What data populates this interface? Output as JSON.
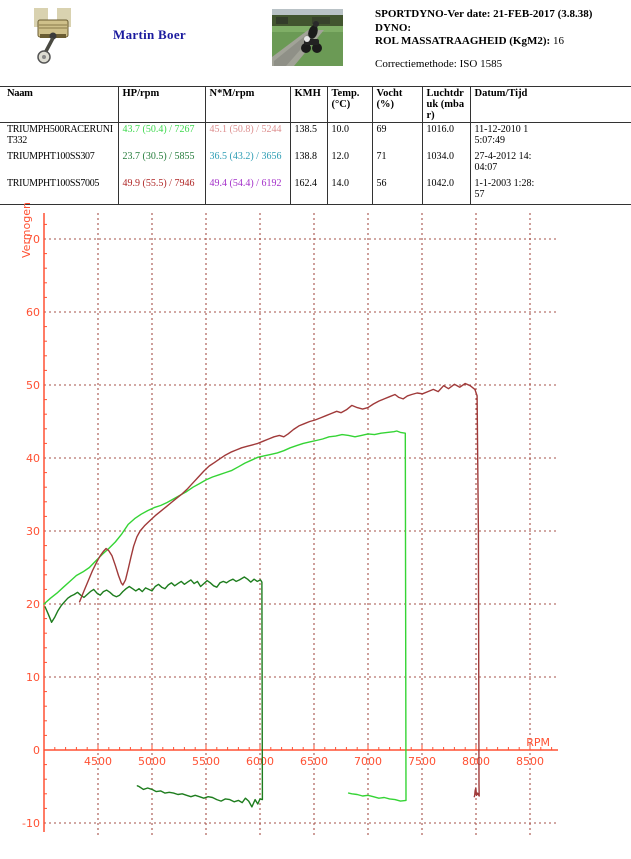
{
  "header": {
    "owner": "Martin Boer",
    "app_version": "SPORTDYNO-Ver date: 21-FEB-2017 (3.8.38)",
    "dyno_label": "DYNO:",
    "inertia_label": "ROL MASSATRAAGHEID (KgM2):",
    "inertia_value": "16",
    "correction": "Correctiemethode: ISO 1585",
    "logo_icon": "piston-logo",
    "photo_icon": "motorcycle-photo"
  },
  "table": {
    "columns": [
      "Naam",
      "HP/rpm",
      "N*M/rpm",
      "KMH",
      "Temp. (°C)",
      "Vocht (%)",
      "Luchtdruk (mbar)",
      "Datum/Tijd"
    ],
    "rows": [
      {
        "naam": "TRIUMPH500RACERUNIT332",
        "hp": "43.7 (50.4) / 7267",
        "hp_color": "#3fd94f",
        "nm": "45.1 (50.8) / 5244",
        "nm_color": "#dd8f8f",
        "kmh": "138.5",
        "temp": "10.0",
        "vocht": "69",
        "luchtdruk": "1016.0",
        "datum": "11-12-2010 15:07:49"
      },
      {
        "naam": "TRIUMPHT100SS307",
        "hp": "23.7 (30.5) / 5855",
        "hp_color": "#267d3c",
        "nm": "36.5 (43.2) / 3656",
        "nm_color": "#2d9db4",
        "kmh": "138.8",
        "temp": "12.0",
        "vocht": "71",
        "luchtdruk": "1034.0",
        "datum": "27-4-2012 14:04:07"
      },
      {
        "naam": "TRIUMPHT100SS7005",
        "hp": "49.9 (55.5) / 7946",
        "hp_color": "#b02828",
        "nm": "49.4 (54.4) / 6192",
        "nm_color": "#a431c9",
        "kmh": "162.4",
        "temp": "14.0",
        "vocht": "56",
        "luchtdruk": "1042.0",
        "datum": "1-1-2003 1:28:57"
      }
    ]
  },
  "chart_data": {
    "type": "line",
    "title": "",
    "xlabel": "RPM",
    "ylabel": "Vermogen",
    "xlim": [
      4000,
      8800
    ],
    "ylim": [
      -11,
      73
    ],
    "x_ticks": [
      4500,
      5000,
      5500,
      6000,
      6500,
      7000,
      7500,
      8000,
      8500
    ],
    "y_ticks": [
      -10,
      0,
      10,
      20,
      30,
      40,
      50,
      60,
      70
    ],
    "grid": "dashed",
    "legend": "none",
    "axis_color": "#ff5133",
    "grid_color": "#a65048",
    "series": [
      {
        "name": "TRIUMPH500RACERUNIT332 HP",
        "color": "#35d435",
        "peak": {
          "hp": 43.7,
          "rpm": 7267
        },
        "points": [
          [
            4000,
            20.0
          ],
          [
            4060,
            20.8
          ],
          [
            4120,
            21.5
          ],
          [
            4180,
            22.3
          ],
          [
            4240,
            23.1
          ],
          [
            4300,
            23.9
          ],
          [
            4360,
            24.4
          ],
          [
            4420,
            25.0
          ],
          [
            4480,
            25.9
          ],
          [
            4540,
            26.8
          ],
          [
            4600,
            27.6
          ],
          [
            4660,
            28.5
          ],
          [
            4720,
            29.6
          ],
          [
            4780,
            30.9
          ],
          [
            4840,
            31.7
          ],
          [
            4900,
            32.3
          ],
          [
            4960,
            32.8
          ],
          [
            5020,
            33.2
          ],
          [
            5080,
            33.5
          ],
          [
            5140,
            33.9
          ],
          [
            5200,
            34.4
          ],
          [
            5260,
            34.9
          ],
          [
            5320,
            35.4
          ],
          [
            5380,
            36.0
          ],
          [
            5440,
            36.5
          ],
          [
            5500,
            37.0
          ],
          [
            5560,
            37.4
          ],
          [
            5620,
            37.7
          ],
          [
            5680,
            38.0
          ],
          [
            5740,
            38.3
          ],
          [
            5800,
            38.8
          ],
          [
            5860,
            39.3
          ],
          [
            5920,
            39.7
          ],
          [
            5980,
            40.1
          ],
          [
            6040,
            40.3
          ],
          [
            6100,
            40.5
          ],
          [
            6160,
            40.7
          ],
          [
            6220,
            41.0
          ],
          [
            6280,
            41.4
          ],
          [
            6340,
            41.7
          ],
          [
            6400,
            42.0
          ],
          [
            6460,
            42.2
          ],
          [
            6520,
            42.4
          ],
          [
            6580,
            42.6
          ],
          [
            6640,
            42.9
          ],
          [
            6700,
            43.0
          ],
          [
            6760,
            43.2
          ],
          [
            6820,
            43.1
          ],
          [
            6880,
            42.9
          ],
          [
            6940,
            43.1
          ],
          [
            7000,
            43.3
          ],
          [
            7060,
            43.2
          ],
          [
            7120,
            43.4
          ],
          [
            7180,
            43.5
          ],
          [
            7240,
            43.6
          ],
          [
            7267,
            43.7
          ],
          [
            7300,
            43.5
          ],
          [
            7345,
            43.4
          ],
          [
            7352,
            -6.9
          ],
          [
            7300,
            -7.0
          ],
          [
            7250,
            -6.8
          ],
          [
            7200,
            -6.7
          ],
          [
            7150,
            -6.5
          ],
          [
            7100,
            -6.6
          ],
          [
            7050,
            -6.4
          ],
          [
            7000,
            -6.2
          ],
          [
            6950,
            -6.3
          ],
          [
            6900,
            -6.1
          ],
          [
            6850,
            -6.0
          ],
          [
            6820,
            -5.9
          ]
        ]
      },
      {
        "name": "TRIUMPHT100SS307 HP",
        "color": "#1e7d1e",
        "peak": {
          "hp": 23.7,
          "rpm": 5855
        },
        "points": [
          [
            4010,
            19.6
          ],
          [
            4040,
            18.6
          ],
          [
            4070,
            17.5
          ],
          [
            4100,
            18.2
          ],
          [
            4130,
            19.1
          ],
          [
            4160,
            19.8
          ],
          [
            4190,
            20.3
          ],
          [
            4220,
            20.8
          ],
          [
            4250,
            21.1
          ],
          [
            4280,
            21.3
          ],
          [
            4310,
            21.6
          ],
          [
            4340,
            21.2
          ],
          [
            4370,
            20.9
          ],
          [
            4400,
            21.3
          ],
          [
            4430,
            21.7
          ],
          [
            4460,
            22.0
          ],
          [
            4490,
            21.5
          ],
          [
            4520,
            21.2
          ],
          [
            4550,
            21.7
          ],
          [
            4580,
            21.9
          ],
          [
            4610,
            21.6
          ],
          [
            4640,
            21.2
          ],
          [
            4670,
            21.0
          ],
          [
            4700,
            21.2
          ],
          [
            4730,
            21.7
          ],
          [
            4760,
            22.1
          ],
          [
            4790,
            22.4
          ],
          [
            4820,
            22.1
          ],
          [
            4850,
            21.8
          ],
          [
            4880,
            22.1
          ],
          [
            4910,
            21.7
          ],
          [
            4940,
            22.2
          ],
          [
            4970,
            22.0
          ],
          [
            5000,
            21.8
          ],
          [
            5030,
            22.4
          ],
          [
            5060,
            22.7
          ],
          [
            5090,
            22.3
          ],
          [
            5120,
            22.1
          ],
          [
            5150,
            22.6
          ],
          [
            5180,
            22.9
          ],
          [
            5210,
            22.5
          ],
          [
            5240,
            22.8
          ],
          [
            5270,
            23.1
          ],
          [
            5300,
            22.7
          ],
          [
            5330,
            23.0
          ],
          [
            5360,
            23.3
          ],
          [
            5390,
            22.8
          ],
          [
            5420,
            23.1
          ],
          [
            5450,
            22.4
          ],
          [
            5480,
            22.8
          ],
          [
            5510,
            23.2
          ],
          [
            5540,
            22.9
          ],
          [
            5570,
            22.5
          ],
          [
            5600,
            22.3
          ],
          [
            5630,
            22.9
          ],
          [
            5660,
            23.1
          ],
          [
            5690,
            22.9
          ],
          [
            5720,
            23.2
          ],
          [
            5750,
            23.4
          ],
          [
            5780,
            23.1
          ],
          [
            5810,
            23.3
          ],
          [
            5855,
            23.7
          ],
          [
            5885,
            23.4
          ],
          [
            5915,
            23.0
          ],
          [
            5945,
            23.4
          ],
          [
            5975,
            23.1
          ],
          [
            6005,
            23.3
          ],
          [
            6018,
            23.0
          ],
          [
            6022,
            -6.8
          ],
          [
            6000,
            -6.7
          ],
          [
            5980,
            -7.4
          ],
          [
            5955,
            -6.8
          ],
          [
            5925,
            -7.8
          ],
          [
            5895,
            -7.0
          ],
          [
            5865,
            -6.6
          ],
          [
            5835,
            -7.2
          ],
          [
            5800,
            -6.9
          ],
          [
            5760,
            -7.1
          ],
          [
            5720,
            -6.8
          ],
          [
            5680,
            -6.7
          ],
          [
            5640,
            -7.0
          ],
          [
            5600,
            -6.8
          ],
          [
            5560,
            -6.5
          ],
          [
            5520,
            -6.4
          ],
          [
            5480,
            -6.6
          ],
          [
            5440,
            -6.4
          ],
          [
            5400,
            -6.2
          ],
          [
            5360,
            -6.4
          ],
          [
            5320,
            -6.2
          ],
          [
            5280,
            -6.0
          ],
          [
            5240,
            -6.1
          ],
          [
            5200,
            -5.9
          ],
          [
            5160,
            -5.8
          ],
          [
            5120,
            -5.9
          ],
          [
            5080,
            -5.6
          ],
          [
            5040,
            -5.7
          ],
          [
            5000,
            -5.4
          ],
          [
            4960,
            -5.2
          ],
          [
            4920,
            -5.4
          ],
          [
            4880,
            -5.0
          ],
          [
            4865,
            -4.9
          ]
        ]
      },
      {
        "name": "TRIUMPHT100SS7005 HP",
        "color": "#a03a3a",
        "peak": {
          "hp": 49.9,
          "rpm": 7946
        },
        "points": [
          [
            4330,
            20.3
          ],
          [
            4370,
            21.8
          ],
          [
            4410,
            23.2
          ],
          [
            4450,
            24.6
          ],
          [
            4490,
            25.8
          ],
          [
            4520,
            26.6
          ],
          [
            4550,
            27.2
          ],
          [
            4575,
            27.6
          ],
          [
            4600,
            27.3
          ],
          [
            4630,
            26.6
          ],
          [
            4660,
            25.3
          ],
          [
            4690,
            23.9
          ],
          [
            4715,
            22.9
          ],
          [
            4730,
            22.6
          ],
          [
            4755,
            23.3
          ],
          [
            4780,
            24.8
          ],
          [
            4805,
            26.4
          ],
          [
            4830,
            27.9
          ],
          [
            4860,
            29.2
          ],
          [
            4890,
            30.0
          ],
          [
            4930,
            30.7
          ],
          [
            4980,
            31.4
          ],
          [
            5030,
            32.1
          ],
          [
            5080,
            32.7
          ],
          [
            5130,
            33.3
          ],
          [
            5180,
            33.9
          ],
          [
            5230,
            34.5
          ],
          [
            5280,
            35.1
          ],
          [
            5330,
            35.8
          ],
          [
            5380,
            36.6
          ],
          [
            5430,
            37.4
          ],
          [
            5480,
            38.2
          ],
          [
            5530,
            38.9
          ],
          [
            5580,
            39.4
          ],
          [
            5630,
            39.9
          ],
          [
            5680,
            40.4
          ],
          [
            5730,
            40.8
          ],
          [
            5780,
            41.1
          ],
          [
            5830,
            41.4
          ],
          [
            5880,
            41.6
          ],
          [
            5930,
            41.8
          ],
          [
            5980,
            42.0
          ],
          [
            6030,
            42.3
          ],
          [
            6080,
            42.6
          ],
          [
            6130,
            42.9
          ],
          [
            6180,
            43.1
          ],
          [
            6220,
            42.9
          ],
          [
            6260,
            43.3
          ],
          [
            6310,
            43.9
          ],
          [
            6360,
            44.4
          ],
          [
            6410,
            44.7
          ],
          [
            6460,
            45.0
          ],
          [
            6510,
            45.2
          ],
          [
            6560,
            45.5
          ],
          [
            6610,
            45.8
          ],
          [
            6660,
            46.1
          ],
          [
            6710,
            46.4
          ],
          [
            6750,
            46.2
          ],
          [
            6800,
            46.6
          ],
          [
            6850,
            47.2
          ],
          [
            6900,
            46.9
          ],
          [
            6950,
            46.7
          ],
          [
            7000,
            46.9
          ],
          [
            7050,
            47.4
          ],
          [
            7100,
            47.8
          ],
          [
            7150,
            48.1
          ],
          [
            7200,
            48.4
          ],
          [
            7250,
            48.7
          ],
          [
            7285,
            48.3
          ],
          [
            7325,
            48.1
          ],
          [
            7365,
            48.5
          ],
          [
            7405,
            48.7
          ],
          [
            7455,
            48.9
          ],
          [
            7505,
            48.8
          ],
          [
            7555,
            49.1
          ],
          [
            7605,
            49.4
          ],
          [
            7650,
            49.1
          ],
          [
            7700,
            49.9
          ],
          [
            7745,
            49.5
          ],
          [
            7800,
            50.1
          ],
          [
            7850,
            49.7
          ],
          [
            7900,
            50.2
          ],
          [
            7946,
            49.9
          ],
          [
            7990,
            49.4
          ],
          [
            8010,
            48.5
          ],
          [
            8022,
            30.0
          ],
          [
            8028,
            -4.8
          ],
          [
            8030,
            -6.3
          ],
          [
            8015,
            -5.9
          ],
          [
            8005,
            -6.2
          ],
          [
            7998,
            -5.2
          ],
          [
            7992,
            -5.6
          ],
          [
            7988,
            -6.2
          ],
          [
            7984,
            -6.4
          ]
        ]
      }
    ]
  }
}
